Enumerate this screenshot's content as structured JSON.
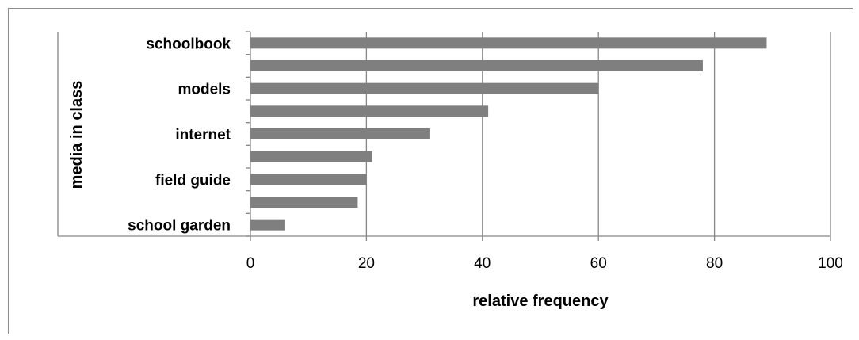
{
  "chart_data": {
    "type": "bar",
    "orientation": "horizontal",
    "title": "",
    "xlabel": "relative frequency",
    "ylabel": "media in class",
    "categories": [
      "schoolbook",
      "",
      "models",
      "",
      "internet",
      "",
      "field guide",
      "",
      "school garden"
    ],
    "values": [
      89,
      78,
      60,
      41,
      31,
      21,
      20,
      18.5,
      6
    ],
    "xlim": [
      0,
      100
    ],
    "xticks": [
      0,
      20,
      40,
      60,
      80,
      100
    ],
    "grid": "vertical",
    "legend": "none",
    "bar_color": "#7f7f7f",
    "grid_color": "#868686"
  }
}
